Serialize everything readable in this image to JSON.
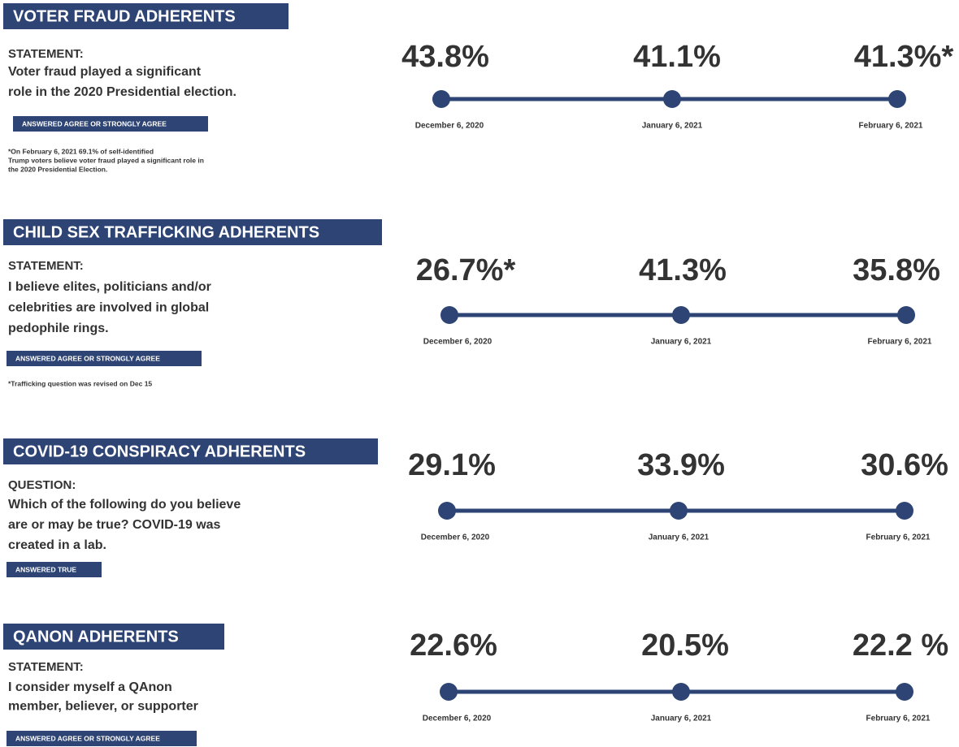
{
  "sections": [
    {
      "title": "VOTER FRAUD ADHERENTS",
      "label": "STATEMENT:",
      "lines": [
        "Voter fraud played a significant",
        "role in the 2020 Presidential election."
      ],
      "badge": "ANSWERED AGREE OR STRONGLY AGREE",
      "notes": [
        "*On February 6, 2021 69.1% of self-identified",
        "Trump voters believe voter fraud played a significant role in",
        "the 2020 Presidential Election."
      ],
      "points": [
        {
          "value": "43.8%",
          "date": "December 6, 2020"
        },
        {
          "value": "41.1%",
          "date": "January 6, 2021"
        },
        {
          "value": "41.3%*",
          "date": "February 6, 2021"
        }
      ]
    },
    {
      "title": "CHILD SEX TRAFFICKING ADHERENTS",
      "label": "STATEMENT:",
      "lines": [
        "I believe elites, politicians and/or",
        "celebrities are involved in global",
        "pedophile rings."
      ],
      "badge": "ANSWERED AGREE OR STRONGLY AGREE",
      "notes": [
        "*Trafficking question was revised on Dec 15"
      ],
      "points": [
        {
          "value": "26.7%*",
          "date": "December 6, 2020"
        },
        {
          "value": "41.3%",
          "date": "January 6, 2021"
        },
        {
          "value": "35.8%",
          "date": "February 6, 2021"
        }
      ]
    },
    {
      "title": "COVID-19 CONSPIRACY ADHERENTS",
      "label": "QUESTION:",
      "lines": [
        "Which of the following do you believe",
        "are or may be true? COVID-19 was",
        "created in a lab."
      ],
      "badge": "ANSWERED TRUE",
      "notes": [],
      "points": [
        {
          "value": "29.1%",
          "date": "December 6, 2020"
        },
        {
          "value": "33.9%",
          "date": "January 6, 2021"
        },
        {
          "value": "30.6%",
          "date": "February 6, 2021"
        }
      ]
    },
    {
      "title": "QANON ADHERENTS",
      "label": "STATEMENT:",
      "lines": [
        "I consider myself a QAnon",
        "member, believer, or supporter"
      ],
      "badge": "ANSWERED AGREE OR STRONGLY AGREE",
      "notes": [],
      "points": [
        {
          "value": "22.6%",
          "date": "December 6, 2020"
        },
        {
          "value": "20.5%",
          "date": "January 6, 2021"
        },
        {
          "value": "22.2 %",
          "date": "February 6, 2021"
        }
      ]
    }
  ]
}
